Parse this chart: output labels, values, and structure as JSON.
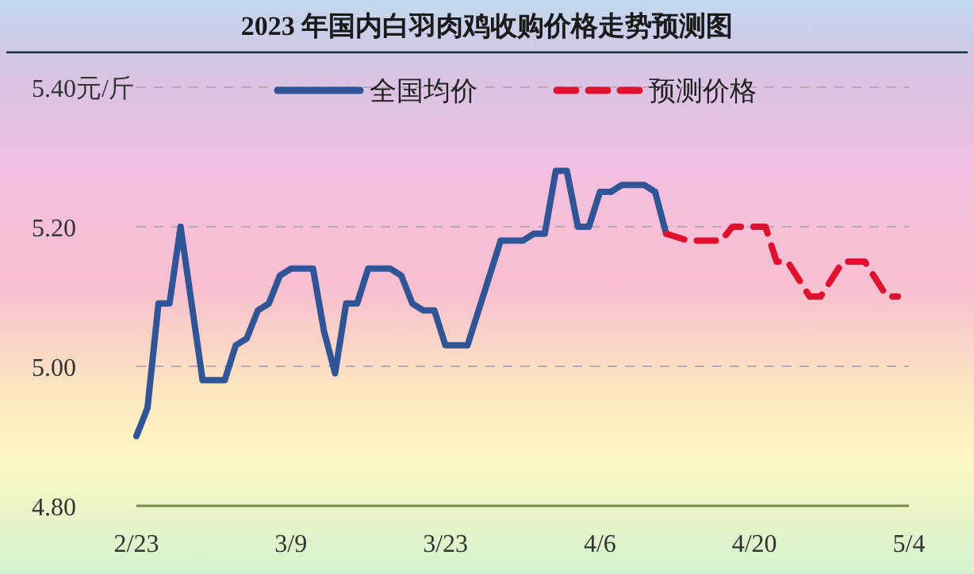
{
  "chart_data": {
    "type": "line",
    "title": "2023 年国内白羽肉鸡收购价格走势预测图",
    "xlim": [
      "2023-02-23",
      "2023-05-04"
    ],
    "xticks": [
      {
        "value": "2023-02-23",
        "label": "2/23"
      },
      {
        "value": "2023-03-09",
        "label": "3/9"
      },
      {
        "value": "2023-03-23",
        "label": "3/23"
      },
      {
        "value": "2023-04-06",
        "label": "4/6"
      },
      {
        "value": "2023-04-20",
        "label": "4/20"
      },
      {
        "value": "2023-05-04",
        "label": "5/4"
      }
    ],
    "ylim": [
      4.8,
      5.4
    ],
    "yticks": [
      {
        "value": 4.8,
        "label": "4.80"
      },
      {
        "value": 5.0,
        "label": "5.00"
      },
      {
        "value": 5.2,
        "label": "5.20"
      },
      {
        "value": 5.4,
        "label": "5.40元/斤"
      }
    ],
    "grid": "y",
    "legend": "top",
    "series": [
      {
        "name": "全国均价",
        "color": "#2f5597",
        "line_style": "solid",
        "x": [
          "2023-02-23",
          "2023-02-24",
          "2023-02-25",
          "2023-02-26",
          "2023-02-27",
          "2023-03-01",
          "2023-03-03",
          "2023-03-04",
          "2023-03-05",
          "2023-03-06",
          "2023-03-07",
          "2023-03-08",
          "2023-03-09",
          "2023-03-11",
          "2023-03-12",
          "2023-03-13",
          "2023-03-14",
          "2023-03-15",
          "2023-03-16",
          "2023-03-18",
          "2023-03-19",
          "2023-03-20",
          "2023-03-21",
          "2023-03-22",
          "2023-03-23",
          "2023-03-25",
          "2023-03-28",
          "2023-03-30",
          "2023-03-31",
          "2023-04-01",
          "2023-04-02",
          "2023-04-03",
          "2023-04-04",
          "2023-04-05",
          "2023-04-06",
          "2023-04-07",
          "2023-04-08",
          "2023-04-10",
          "2023-04-11",
          "2023-04-12"
        ],
        "values": [
          4.9,
          4.94,
          5.09,
          5.09,
          5.2,
          4.98,
          4.98,
          5.03,
          5.04,
          5.08,
          5.09,
          5.13,
          5.14,
          5.14,
          5.05,
          4.99,
          5.09,
          5.09,
          5.14,
          5.14,
          5.13,
          5.09,
          5.08,
          5.08,
          5.03,
          5.03,
          5.18,
          5.18,
          5.19,
          5.19,
          5.28,
          5.28,
          5.2,
          5.2,
          5.25,
          5.25,
          5.26,
          5.26,
          5.25,
          5.19
        ]
      },
      {
        "name": "预测价格",
        "color": "#e0102f",
        "line_style": "dashed",
        "x": [
          "2023-04-12",
          "2023-04-14",
          "2023-04-17",
          "2023-04-18",
          "2023-04-21",
          "2023-04-22",
          "2023-04-23",
          "2023-04-25",
          "2023-04-26",
          "2023-04-28",
          "2023-04-30",
          "2023-05-02",
          "2023-05-03"
        ],
        "values": [
          5.19,
          5.18,
          5.18,
          5.2,
          5.2,
          5.15,
          5.15,
          5.1,
          5.1,
          5.15,
          5.15,
          5.1,
          5.1
        ]
      }
    ]
  }
}
